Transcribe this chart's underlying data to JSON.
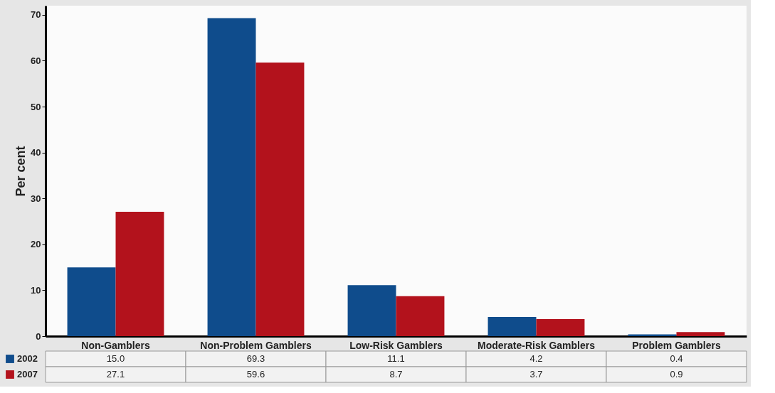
{
  "chart_data": {
    "type": "bar",
    "ylabel": "Per cent",
    "categories": [
      "Non-Gamblers",
      "Non-Problem Gamblers",
      "Low-Risk Gamblers",
      "Moderate-Risk Gamblers",
      "Problem Gamblers"
    ],
    "series": [
      {
        "name": "2002",
        "color": "#0f4c8c",
        "values": [
          15.0,
          69.3,
          11.1,
          4.2,
          0.4
        ],
        "value_labels": [
          "15.0",
          "69.3",
          "11.1",
          "4.2",
          "0.4"
        ]
      },
      {
        "name": "2007",
        "color": "#b3121c",
        "values": [
          27.1,
          59.6,
          8.7,
          3.7,
          0.9
        ],
        "value_labels": [
          "27.1",
          "59.6",
          "8.7",
          "3.7",
          "0.9"
        ]
      }
    ],
    "ylim": [
      0,
      72
    ],
    "yticks": [
      0,
      10,
      20,
      30,
      40,
      50,
      60,
      70
    ],
    "grid": false,
    "legend": "bottom left"
  }
}
